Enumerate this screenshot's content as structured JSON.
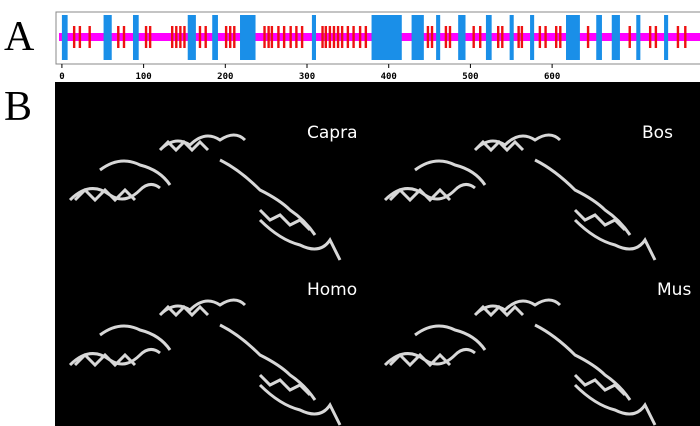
{
  "panel_labels": [
    "A",
    "B"
  ],
  "chart_data": {
    "type": "track",
    "xlim": [
      -6,
      781
    ],
    "xticks": [
      0,
      100,
      200,
      300,
      400,
      500,
      600
    ],
    "band_color": "#ff00ff",
    "domain_color": "#1a8fe8",
    "site_color": "#ee1111",
    "domains": [
      [
        0,
        7
      ],
      [
        51,
        61
      ],
      [
        87,
        94
      ],
      [
        154,
        164
      ],
      [
        184,
        191
      ],
      [
        218,
        237
      ],
      [
        306,
        311
      ],
      [
        379,
        416
      ],
      [
        428,
        443
      ],
      [
        458,
        463
      ],
      [
        485,
        494
      ],
      [
        519,
        526
      ],
      [
        548,
        553
      ],
      [
        573,
        578
      ],
      [
        617,
        634
      ],
      [
        654,
        661
      ],
      [
        673,
        683
      ],
      [
        703,
        708
      ],
      [
        737,
        742
      ]
    ],
    "sites": [
      15,
      22,
      34,
      69,
      76,
      103,
      108,
      135,
      140,
      145,
      150,
      169,
      176,
      201,
      206,
      211,
      248,
      253,
      257,
      265,
      272,
      280,
      287,
      294,
      319,
      323,
      328,
      333,
      338,
      343,
      350,
      357,
      365,
      372,
      448,
      453,
      470,
      475,
      504,
      512,
      534,
      539,
      559,
      563,
      585,
      592,
      605,
      610,
      644,
      695,
      720,
      727,
      754,
      763
    ]
  },
  "species": [
    "Capra",
    "Bos",
    "Homo",
    "Mus"
  ]
}
